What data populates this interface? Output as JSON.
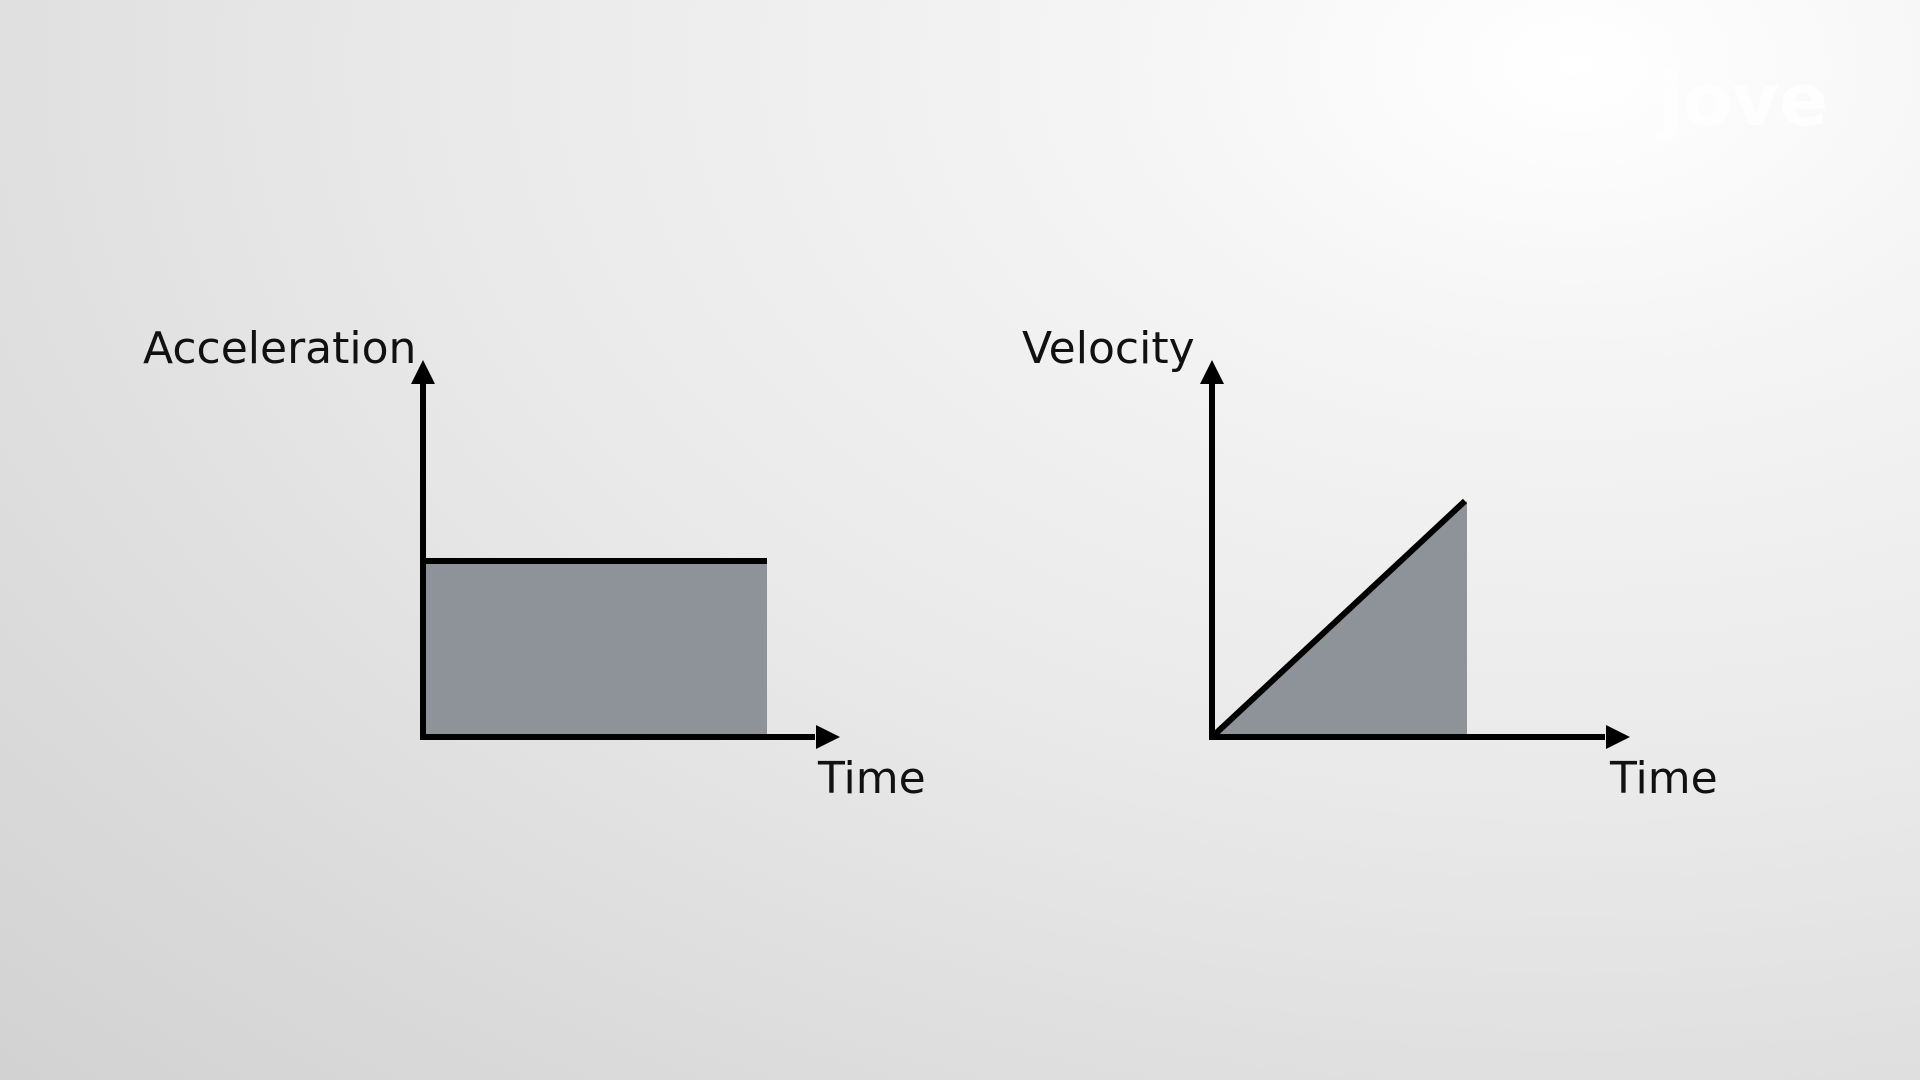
{
  "brand": {
    "logo_text": "jove",
    "logo_color": "#ffffff",
    "logo_accent": "#c8d2f0"
  },
  "colors": {
    "area_fill": "#8e9299",
    "axis_stroke": "#000000",
    "text": "#111111"
  },
  "diagrams": [
    {
      "id": "acceleration-time",
      "shape": "rectangle",
      "ylabel": "Acceleration",
      "xlabel": "Time"
    },
    {
      "id": "velocity-time",
      "shape": "triangle",
      "ylabel": "Velocity",
      "xlabel": "Time"
    }
  ]
}
